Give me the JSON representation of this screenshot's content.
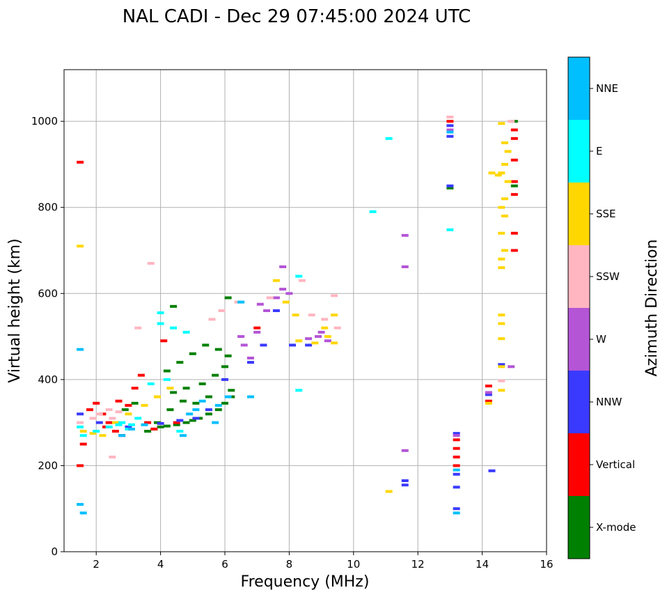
{
  "chart_data": {
    "type": "scatter",
    "title": "NAL CADI - Dec 29 07:45:00 2024 UTC",
    "xlabel": "Frequency (MHz)",
    "ylabel": "Virtual height (km)",
    "xlim": [
      1,
      16
    ],
    "ylim": [
      0,
      1120
    ],
    "xticks": [
      2,
      4,
      6,
      8,
      10,
      12,
      14,
      16
    ],
    "yticks": [
      0,
      200,
      400,
      600,
      800,
      1000
    ],
    "grid": true,
    "colorbar": {
      "label": "Azimuth Direction",
      "categories": [
        {
          "name": "X-mode",
          "color": "#008000"
        },
        {
          "name": "Vertical",
          "color": "#ff0000"
        },
        {
          "name": "NNW",
          "color": "#3a3aff"
        },
        {
          "name": "W",
          "color": "#b455d6"
        },
        {
          "name": "SSW",
          "color": "#ffb6c1"
        },
        {
          "name": "SSE",
          "color": "#ffd700"
        },
        {
          "name": "E",
          "color": "#00ffff"
        },
        {
          "name": "NNE",
          "color": "#00bfff"
        }
      ]
    },
    "series": [
      {
        "name": "X-mode",
        "points": [
          [
            3.6,
            280
          ],
          [
            3.8,
            285
          ],
          [
            4.0,
            290
          ],
          [
            4.2,
            292
          ],
          [
            4.5,
            295
          ],
          [
            4.8,
            300
          ],
          [
            5.0,
            305
          ],
          [
            5.2,
            310
          ],
          [
            5.5,
            320
          ],
          [
            5.8,
            330
          ],
          [
            6.0,
            345
          ],
          [
            6.2,
            360
          ],
          [
            4.4,
            370
          ],
          [
            4.8,
            380
          ],
          [
            5.3,
            390
          ],
          [
            5.7,
            410
          ],
          [
            6.0,
            430
          ],
          [
            4.2,
            420
          ],
          [
            4.6,
            440
          ],
          [
            5.0,
            460
          ],
          [
            5.4,
            480
          ],
          [
            5.8,
            470
          ],
          [
            6.1,
            455
          ],
          [
            6.2,
            375
          ],
          [
            3.9,
            300
          ],
          [
            4.3,
            330
          ],
          [
            4.7,
            350
          ],
          [
            5.1,
            345
          ],
          [
            5.5,
            360
          ],
          [
            3.2,
            345
          ],
          [
            2.9,
            330
          ],
          [
            6.1,
            590
          ],
          [
            15.0,
            1000
          ],
          [
            15.0,
            850
          ],
          [
            13.0,
            845
          ],
          [
            4.4,
            570
          ]
        ]
      },
      {
        "name": "Vertical",
        "points": [
          [
            1.5,
            905
          ],
          [
            1.5,
            200
          ],
          [
            1.6,
            250
          ],
          [
            1.8,
            330
          ],
          [
            2.0,
            345
          ],
          [
            2.2,
            320
          ],
          [
            2.4,
            300
          ],
          [
            2.6,
            280
          ],
          [
            2.8,
            270
          ],
          [
            3.0,
            340
          ],
          [
            3.2,
            380
          ],
          [
            3.4,
            410
          ],
          [
            3.6,
            300
          ],
          [
            3.8,
            285
          ],
          [
            4.1,
            490
          ],
          [
            4.5,
            300
          ],
          [
            7.0,
            520
          ],
          [
            13.0,
            1000
          ],
          [
            13.2,
            260
          ],
          [
            13.2,
            240
          ],
          [
            13.2,
            220
          ],
          [
            13.2,
            200
          ],
          [
            14.2,
            385
          ],
          [
            14.2,
            350
          ],
          [
            15.0,
            980
          ],
          [
            15.0,
            960
          ],
          [
            15.0,
            910
          ],
          [
            15.0,
            860
          ],
          [
            15.0,
            830
          ],
          [
            15.0,
            740
          ],
          [
            15.0,
            700
          ],
          [
            2.3,
            290
          ],
          [
            2.7,
            350
          ]
        ]
      },
      {
        "name": "NNW",
        "points": [
          [
            1.5,
            320
          ],
          [
            2.1,
            300
          ],
          [
            3.0,
            290
          ],
          [
            4.0,
            298
          ],
          [
            4.6,
            305
          ],
          [
            5.1,
            310
          ],
          [
            5.5,
            330
          ],
          [
            6.0,
            400
          ],
          [
            6.8,
            440
          ],
          [
            7.2,
            480
          ],
          [
            7.6,
            560
          ],
          [
            8.1,
            480
          ],
          [
            8.6,
            480
          ],
          [
            13.0,
            990
          ],
          [
            13.0,
            965
          ],
          [
            13.0,
            850
          ],
          [
            13.2,
            275
          ],
          [
            13.2,
            180
          ],
          [
            13.2,
            150
          ],
          [
            13.2,
            100
          ],
          [
            14.2,
            365
          ],
          [
            14.3,
            188
          ],
          [
            11.6,
            165
          ],
          [
            11.6,
            155
          ],
          [
            14.6,
            435
          ]
        ]
      },
      {
        "name": "W",
        "points": [
          [
            6.5,
            500
          ],
          [
            6.6,
            480
          ],
          [
            6.8,
            450
          ],
          [
            7.0,
            510
          ],
          [
            7.1,
            575
          ],
          [
            7.3,
            560
          ],
          [
            7.6,
            590
          ],
          [
            7.8,
            610
          ],
          [
            8.0,
            600
          ],
          [
            8.6,
            495
          ],
          [
            8.9,
            500
          ],
          [
            9.0,
            510
          ],
          [
            9.2,
            490
          ],
          [
            11.6,
            235
          ],
          [
            11.6,
            735
          ],
          [
            11.6,
            662
          ],
          [
            7.8,
            662
          ],
          [
            13.0,
            980
          ],
          [
            13.2,
            270
          ],
          [
            14.2,
            370
          ],
          [
            14.9,
            430
          ]
        ]
      },
      {
        "name": "SSW",
        "points": [
          [
            1.5,
            300
          ],
          [
            1.9,
            310
          ],
          [
            2.1,
            320
          ],
          [
            2.4,
            330
          ],
          [
            2.5,
            310
          ],
          [
            2.7,
            325
          ],
          [
            3.3,
            520
          ],
          [
            3.7,
            670
          ],
          [
            5.6,
            540
          ],
          [
            5.9,
            560
          ],
          [
            6.4,
            580
          ],
          [
            7.4,
            590
          ],
          [
            8.4,
            630
          ],
          [
            8.7,
            550
          ],
          [
            9.1,
            540
          ],
          [
            9.4,
            595
          ],
          [
            9.5,
            520
          ],
          [
            13.0,
            1010
          ],
          [
            14.9,
            1000
          ],
          [
            14.6,
            397
          ],
          [
            14.7,
            900
          ],
          [
            2.5,
            220
          ]
        ]
      },
      {
        "name": "SSE",
        "points": [
          [
            1.5,
            710
          ],
          [
            1.6,
            280
          ],
          [
            1.9,
            275
          ],
          [
            2.2,
            270
          ],
          [
            2.6,
            300
          ],
          [
            3.0,
            320
          ],
          [
            3.5,
            340
          ],
          [
            3.9,
            360
          ],
          [
            4.3,
            380
          ],
          [
            7.6,
            630
          ],
          [
            7.9,
            580
          ],
          [
            8.2,
            550
          ],
          [
            8.3,
            490
          ],
          [
            8.8,
            485
          ],
          [
            9.1,
            520
          ],
          [
            9.2,
            500
          ],
          [
            9.4,
            485
          ],
          [
            9.4,
            550
          ],
          [
            11.1,
            140
          ],
          [
            14.6,
            995
          ],
          [
            14.7,
            950
          ],
          [
            14.8,
            930
          ],
          [
            14.7,
            900
          ],
          [
            14.6,
            880
          ],
          [
            14.8,
            860
          ],
          [
            14.7,
            820
          ],
          [
            14.6,
            800
          ],
          [
            14.7,
            780
          ],
          [
            14.6,
            740
          ],
          [
            14.7,
            700
          ],
          [
            14.6,
            680
          ],
          [
            14.6,
            660
          ],
          [
            14.6,
            550
          ],
          [
            14.6,
            530
          ],
          [
            14.6,
            495
          ],
          [
            14.6,
            430
          ],
          [
            14.6,
            375
          ],
          [
            14.3,
            880
          ],
          [
            14.5,
            875
          ],
          [
            14.2,
            345
          ]
        ]
      },
      {
        "name": "E",
        "points": [
          [
            1.5,
            290
          ],
          [
            1.6,
            270
          ],
          [
            2.0,
            280
          ],
          [
            2.4,
            290
          ],
          [
            2.8,
            300
          ],
          [
            3.1,
            295
          ],
          [
            3.3,
            310
          ],
          [
            3.7,
            390
          ],
          [
            4.0,
            555
          ],
          [
            4.0,
            530
          ],
          [
            4.4,
            520
          ],
          [
            4.8,
            510
          ],
          [
            8.3,
            640
          ],
          [
            8.3,
            375
          ],
          [
            10.6,
            790
          ],
          [
            11.1,
            960
          ],
          [
            13.0,
            748
          ],
          [
            4.2,
            400
          ],
          [
            4.6,
            280
          ],
          [
            3.0,
            285
          ],
          [
            2.7,
            295
          ]
        ]
      },
      {
        "name": "NNE",
        "points": [
          [
            1.5,
            470
          ],
          [
            1.5,
            110
          ],
          [
            1.6,
            90
          ],
          [
            2.8,
            270
          ],
          [
            3.1,
            285
          ],
          [
            3.5,
            295
          ],
          [
            4.7,
            270
          ],
          [
            5.3,
            350
          ],
          [
            5.7,
            300
          ],
          [
            5.8,
            340
          ],
          [
            6.1,
            360
          ],
          [
            6.5,
            580
          ],
          [
            6.8,
            360
          ],
          [
            13.0,
            975
          ],
          [
            13.2,
            190
          ],
          [
            13.2,
            90
          ],
          [
            5.1,
            330
          ],
          [
            4.9,
            320
          ]
        ]
      }
    ]
  }
}
